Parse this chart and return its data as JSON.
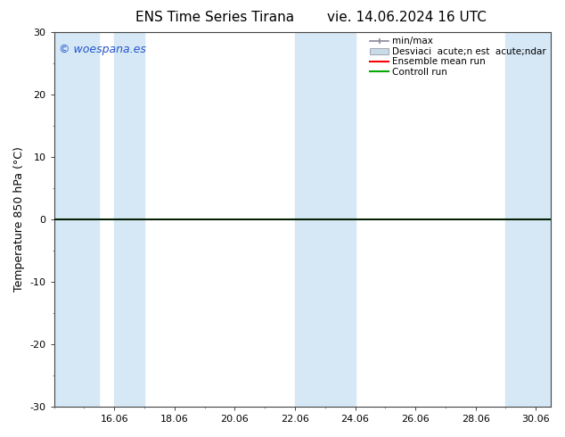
{
  "title": "ENS Time Series Tirana",
  "title2": "vie. 14.06.2024 16 UTC",
  "ylabel": "Temperature 850 hPa (°C)",
  "ylim": [
    -30,
    30
  ],
  "yticks": [
    -30,
    -20,
    -10,
    0,
    10,
    20,
    30
  ],
  "xtick_labels": [
    "16.06",
    "18.06",
    "20.06",
    "22.06",
    "24.06",
    "26.06",
    "28.06",
    "30.06"
  ],
  "background_color": "#ffffff",
  "plot_bg_color": "#ffffff",
  "band_color": "#d6e8f5",
  "band_positions": [
    [
      14.0,
      15.5
    ],
    [
      16.0,
      17.0
    ],
    [
      22.0,
      24.0
    ],
    [
      29.0,
      30.5
    ]
  ],
  "hline_y": 0,
  "hline_color": "#000000",
  "hline_lw": 1.2,
  "green_line_color": "#00aa00",
  "green_line_lw": 1.5,
  "watermark": "© woespana.es",
  "watermark_color": "#2255cc",
  "watermark_fontsize": 9,
  "legend_label_minmax": "min/max",
  "legend_label_std": "Desviaci  acute;n est  acute;ndar",
  "legend_label_mean": "Ensemble mean run",
  "legend_label_ctrl": "Controll run",
  "ensemble_mean_color": "#ff0000",
  "control_run_color": "#00aa00",
  "minmax_line_color": "#888899",
  "std_fill_color": "#c8dce8",
  "title_fontsize": 11,
  "axis_label_fontsize": 9,
  "tick_fontsize": 8,
  "legend_fontsize": 7.5,
  "xlim": [
    14.0,
    30.5
  ],
  "xtick_positions": [
    16,
    18,
    20,
    22,
    24,
    26,
    28,
    30
  ]
}
